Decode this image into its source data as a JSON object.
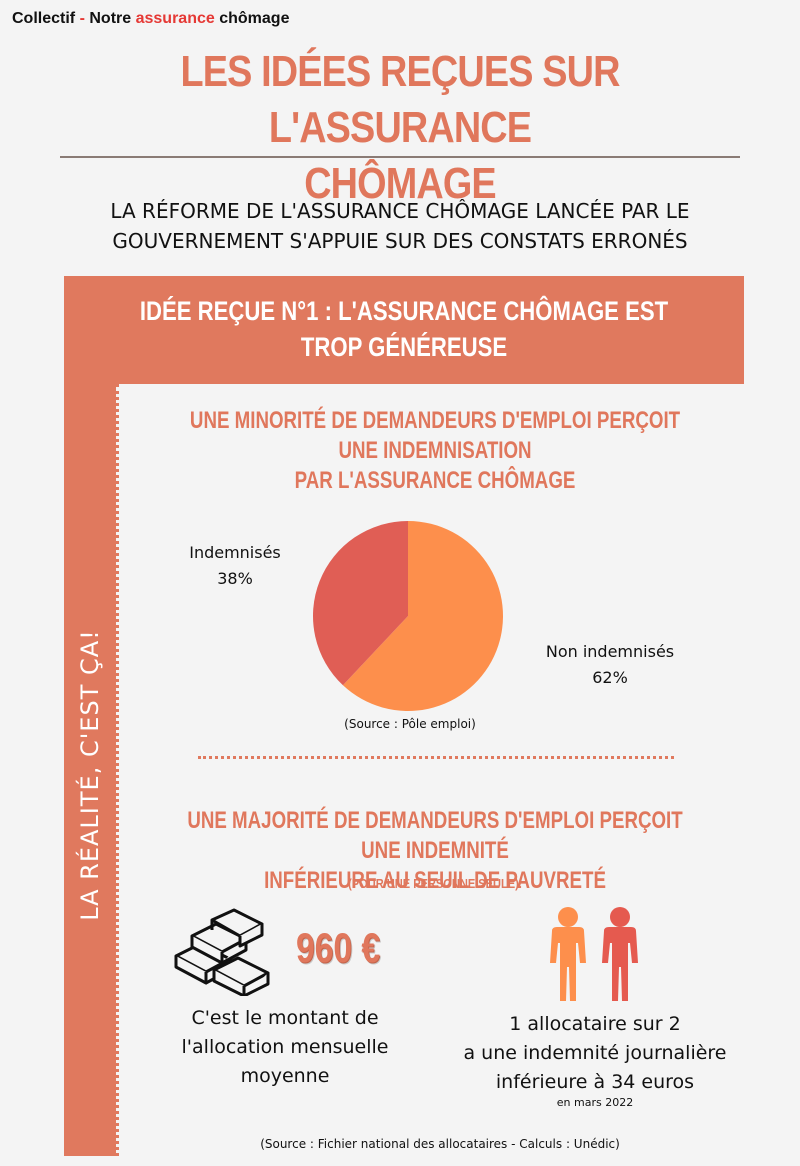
{
  "brand": {
    "part1": "Collectif",
    "dash": "-",
    "part2": "Notre",
    "accent": "assurance",
    "part3": "chômage"
  },
  "title": {
    "line1": "LES IDÉES REÇUES SUR L'ASSURANCE",
    "line2": "CHÔMAGE"
  },
  "subtitle": {
    "line1": "LA RÉFORME DE L'ASSURANCE CHÔMAGE LANCÉE PAR LE",
    "line2": "GOUVERNEMENT S'APPUIE SUR DES CONSTATS ERRONÉS"
  },
  "band": {
    "line1": "IDÉE REÇUE N°1 : L'ASSURANCE CHÔMAGE EST",
    "line2": "TROP GÉNÉREUSE"
  },
  "side_label": "LA RÉALITÉ, C'EST ÇA!",
  "section1": {
    "line1": "UNE MINORITÉ DE DEMANDEURS D'EMPLOI PERÇOIT UNE INDEMNISATION",
    "line2": "PAR L'ASSURANCE CHÔMAGE",
    "source": "(Source : Pôle emploi)"
  },
  "chart_data": {
    "type": "pie",
    "slices": [
      {
        "label": "Indemnisés",
        "value": 38,
        "value_label": "38%",
        "color": "#e05e55"
      },
      {
        "label": "Non indemnisés",
        "value": 62,
        "value_label": "62%",
        "color": "#fd8f4c"
      }
    ]
  },
  "section2": {
    "line1": "UNE MAJORITÉ DE DEMANDEURS D'EMPLOI PERÇOIT UNE INDEMNITÉ",
    "line2": "INFÉRIEURE AU SEUIL DE PAUVRETÉ",
    "note": "(POUR UNE PERSONNE SEULE).",
    "amount": "960 €",
    "amount_text": {
      "line1": "C'est le montant de",
      "line2": "l'allocation mensuelle",
      "line3": "moyenne"
    },
    "people_text": {
      "line1": "1 allocataire sur 2",
      "line2": "a une indemnité journalière",
      "line3": "inférieure à 34 euros"
    },
    "people_date": "en mars 2022",
    "source": "(Source : Fichier national des allocataires - Calculs : Unédic)"
  },
  "icons": {
    "cash": "cash-stack-icon",
    "people": "two-people-icon"
  },
  "colors": {
    "accent": "#e0795e",
    "title": "#e0775c",
    "pie_small": "#e05e55",
    "pie_large": "#fd8f4c",
    "person_left": "#fd8f4c",
    "person_right": "#e55a4f"
  }
}
